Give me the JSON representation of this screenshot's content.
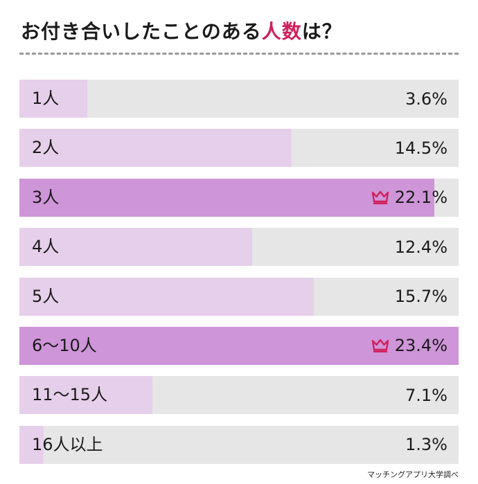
{
  "title": {
    "prefix": "お付き合いしたことのある",
    "highlight": "人数",
    "suffix": "は？"
  },
  "source": "マッチングアプリ大学調べ",
  "colors": {
    "track": "#e6e6e6",
    "bar": "#e6cfea",
    "top_bar": "#ce95d8",
    "accent": "#d11f5a"
  },
  "chart_data": {
    "type": "bar",
    "orientation": "horizontal",
    "unit": "%",
    "categories": [
      "1人",
      "2人",
      "3人",
      "4人",
      "5人",
      "6〜10人",
      "11〜15人",
      "16人以上"
    ],
    "values": [
      3.6,
      14.5,
      22.1,
      12.4,
      15.7,
      23.4,
      7.1,
      1.3
    ],
    "value_labels": [
      "3.6%",
      "14.5%",
      "22.1%",
      "12.4%",
      "15.7%",
      "23.4%",
      "7.1%",
      "1.3%"
    ],
    "highlighted": [
      false,
      false,
      true,
      false,
      false,
      true,
      false,
      false
    ],
    "highlight_icon": "crown-icon",
    "xlim": [
      0,
      23.4
    ]
  }
}
